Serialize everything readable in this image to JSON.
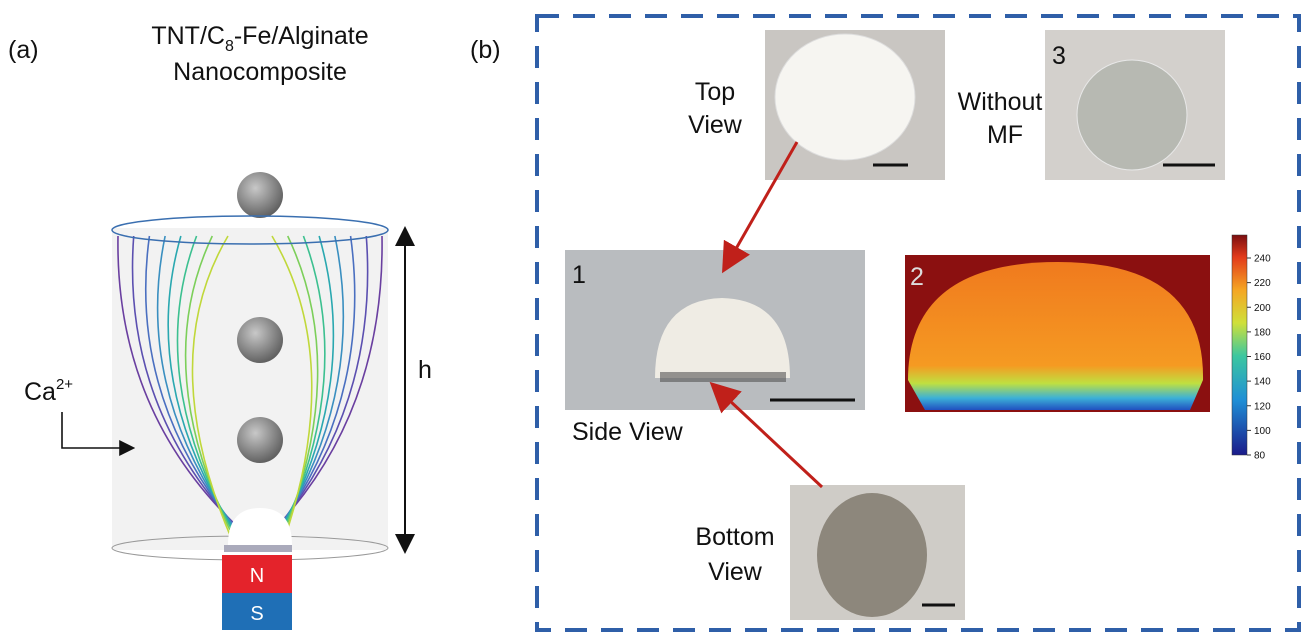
{
  "panel_a": {
    "label": "(a)",
    "title_parts": [
      "TNT/C",
      "8",
      "-Fe/Alginate"
    ],
    "title_line2": "Nanocomposite",
    "ion": "Ca",
    "ion_charge": "2+",
    "height_label": "h",
    "magnet_north": "N",
    "magnet_south": "S"
  },
  "panel_b": {
    "label": "(b)",
    "top_view": [
      "Top",
      "View"
    ],
    "without_mf": [
      "Without",
      "MF"
    ],
    "panel_3": "3",
    "panel_1": "1",
    "panel_2": "2",
    "side_view": "Side View",
    "bottom_view": [
      "Bottom",
      "View"
    ],
    "colorbar_ticks": [
      80,
      100,
      120,
      140,
      160,
      180,
      200,
      220,
      240
    ]
  }
}
